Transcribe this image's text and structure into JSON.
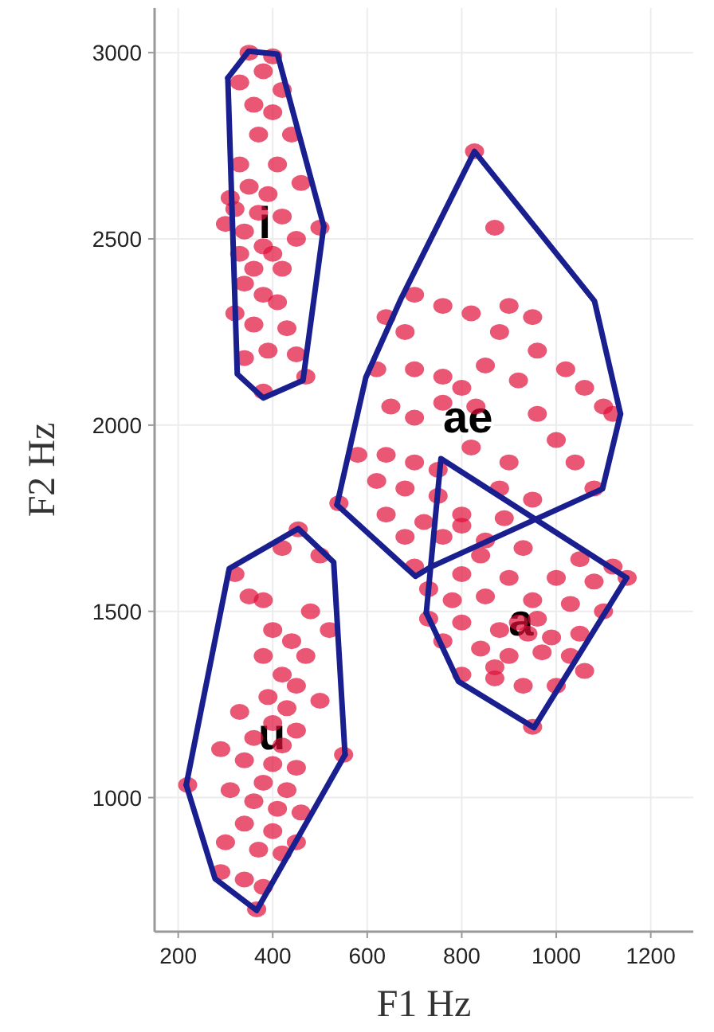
{
  "chart_data": {
    "type": "scatter",
    "xlabel": "F1 Hz",
    "ylabel": "F2 Hz",
    "xlim": [
      150,
      1290
    ],
    "ylim": [
      640,
      3120
    ],
    "xticks": [
      200,
      400,
      600,
      800,
      1000,
      1200
    ],
    "yticks": [
      1000,
      1500,
      2000,
      2500,
      3000
    ],
    "grid": true,
    "marker": "circle",
    "series": [
      {
        "name": "i",
        "color": "#e0103a",
        "x": [
          350,
          400,
          380,
          420,
          330,
          360,
          400,
          440,
          370,
          330,
          410,
          460,
          350,
          390,
          320,
          370,
          420,
          340,
          300,
          450,
          380,
          400,
          330,
          360,
          420,
          340,
          380,
          410,
          320,
          360,
          430,
          390,
          340,
          450,
          380,
          470,
          500,
          310
        ],
        "values": [
          3000,
          2990,
          2950,
          2900,
          2920,
          2860,
          2840,
          2780,
          2780,
          2700,
          2700,
          2650,
          2640,
          2620,
          2580,
          2570,
          2560,
          2520,
          2540,
          2500,
          2480,
          2460,
          2460,
          2420,
          2420,
          2380,
          2350,
          2330,
          2300,
          2270,
          2260,
          2200,
          2180,
          2190,
          2090,
          2130,
          2530,
          2610
        ]
      },
      {
        "name": "ae",
        "color": "#e0103a",
        "x": [
          827,
          870,
          700,
          760,
          820,
          900,
          950,
          640,
          680,
          880,
          960,
          1020,
          620,
          700,
          760,
          800,
          850,
          920,
          1060,
          1100,
          1120,
          650,
          700,
          760,
          830,
          960,
          1000,
          580,
          640,
          700,
          750,
          820,
          900,
          1040,
          620,
          680,
          750,
          880,
          950,
          1080,
          540,
          640,
          720,
          800,
          890,
          680,
          800,
          850,
          700
        ],
        "values": [
          2735,
          2530,
          2350,
          2320,
          2300,
          2320,
          2290,
          2290,
          2250,
          2250,
          2200,
          2150,
          2150,
          2150,
          2130,
          2100,
          2160,
          2120,
          2100,
          2050,
          2030,
          2050,
          2020,
          2060,
          2050,
          2030,
          1960,
          1920,
          1920,
          1900,
          1880,
          1940,
          1900,
          1900,
          1850,
          1830,
          1810,
          1830,
          1800,
          1830,
          1790,
          1760,
          1740,
          1760,
          1750,
          1700,
          1730,
          1690,
          1620
        ]
      },
      {
        "name": "a",
        "color": "#e0103a",
        "x": [
          760,
          840,
          930,
          1050,
          1120,
          1150,
          1080,
          1000,
          900,
          800,
          730,
          780,
          850,
          950,
          1030,
          1100,
          730,
          800,
          880,
          940,
          990,
          1050,
          760,
          840,
          900,
          970,
          1030,
          800,
          870,
          930,
          1000,
          1060,
          950,
          870,
          920,
          960
        ],
        "values": [
          1700,
          1650,
          1670,
          1640,
          1620,
          1590,
          1580,
          1590,
          1590,
          1600,
          1560,
          1530,
          1540,
          1530,
          1520,
          1500,
          1480,
          1470,
          1450,
          1440,
          1430,
          1440,
          1420,
          1400,
          1380,
          1390,
          1380,
          1330,
          1320,
          1300,
          1300,
          1340,
          1190,
          1350,
          1470,
          1480
        ]
      },
      {
        "name": "u",
        "color": "#e0103a",
        "x": [
          454,
          320,
          420,
          500,
          350,
          380,
          480,
          400,
          440,
          520,
          380,
          470,
          420,
          450,
          390,
          430,
          500,
          330,
          400,
          450,
          360,
          420,
          290,
          340,
          400,
          450,
          380,
          430,
          310,
          220,
          360,
          410,
          460,
          340,
          400,
          450,
          300,
          370,
          420,
          290,
          340,
          380,
          366,
          550
        ],
        "values": [
          1720,
          1600,
          1670,
          1650,
          1540,
          1530,
          1500,
          1450,
          1420,
          1450,
          1380,
          1380,
          1330,
          1300,
          1270,
          1240,
          1260,
          1230,
          1200,
          1180,
          1160,
          1140,
          1130,
          1100,
          1090,
          1080,
          1040,
          1020,
          1020,
          1034,
          990,
          970,
          960,
          930,
          910,
          880,
          880,
          860,
          850,
          800,
          780,
          760,
          700,
          1115
        ]
      },
      {
        "type": "line",
        "marker": "none",
        "color": "#1a1f8f",
        "x": [
          305,
          349,
          410,
          508
        ],
        "values": [
          2932,
          3004,
          2996,
          2534
        ]
      },
      {
        "type": "line",
        "marker": "none",
        "color": "#1a1f8f",
        "x": [
          305,
          325,
          380,
          464,
          508
        ],
        "values": [
          2932,
          2137,
          2073,
          2120,
          2534
        ]
      },
      {
        "type": "line",
        "marker": "none",
        "color": "#1a1f8f",
        "x": [
          536,
          597,
          671,
          827,
          1081,
          1136
        ],
        "values": [
          1786,
          2128,
          2338,
          2735,
          2333,
          2030
        ]
      },
      {
        "type": "line",
        "marker": "none",
        "color": "#1a1f8f",
        "x": [
          536,
          702,
          736,
          1098,
          1136
        ],
        "values": [
          1786,
          1594,
          1620,
          1829,
          2030
        ]
      },
      {
        "type": "line",
        "marker": "none",
        "color": "#1a1f8f",
        "x": [
          725,
          756,
          1149
        ],
        "values": [
          1496,
          1910,
          1590
        ]
      },
      {
        "type": "line",
        "marker": "none",
        "color": "#1a1f8f",
        "x": [
          725,
          793,
          953,
          1149
        ],
        "values": [
          1496,
          1312,
          1188,
          1590
        ]
      },
      {
        "type": "line",
        "marker": "none",
        "color": "#1a1f8f",
        "x": [
          217,
          308,
          454,
          529,
          553
        ],
        "values": [
          1034,
          1615,
          1722,
          1632,
          1115
        ]
      },
      {
        "type": "line",
        "marker": "none",
        "color": "#1a1f8f",
        "x": [
          217,
          278,
          366,
          553
        ],
        "values": [
          1034,
          782,
          697,
          1115
        ]
      }
    ]
  }
}
